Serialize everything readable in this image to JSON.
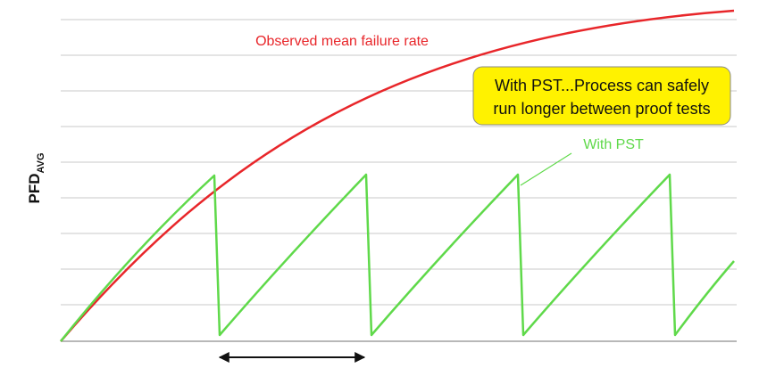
{
  "y_axis_label": {
    "main": "PFD",
    "subscript": "AVG"
  },
  "annotations": {
    "observed": "Observed mean failure rate",
    "callout": [
      "With PST...Process can safely",
      "run longer between proof tests"
    ],
    "with_pst": "With PST"
  }
}
